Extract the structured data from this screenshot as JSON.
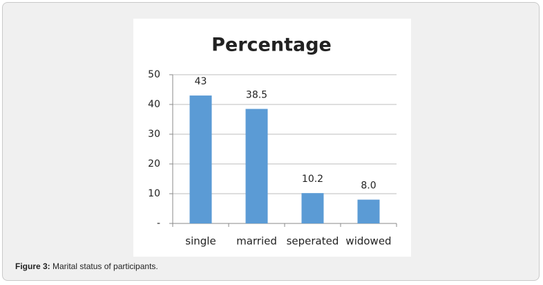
{
  "chart_data": {
    "type": "bar",
    "title": "Percentage",
    "categories": [
      "single",
      "married",
      "seperated",
      "widowed"
    ],
    "values": [
      43,
      38.5,
      10.2,
      8.0
    ],
    "value_labels": [
      "43",
      "38.5",
      "10.2",
      "8.0"
    ],
    "color": "#5b9bd5",
    "ylim": [
      0,
      50
    ],
    "yticks": [
      {
        "value": 0,
        "label": "-"
      },
      10,
      20,
      30,
      40,
      50
    ],
    "grid": true
  },
  "caption": {
    "label": "Figure 3:",
    "text": "Marital status of participants."
  }
}
